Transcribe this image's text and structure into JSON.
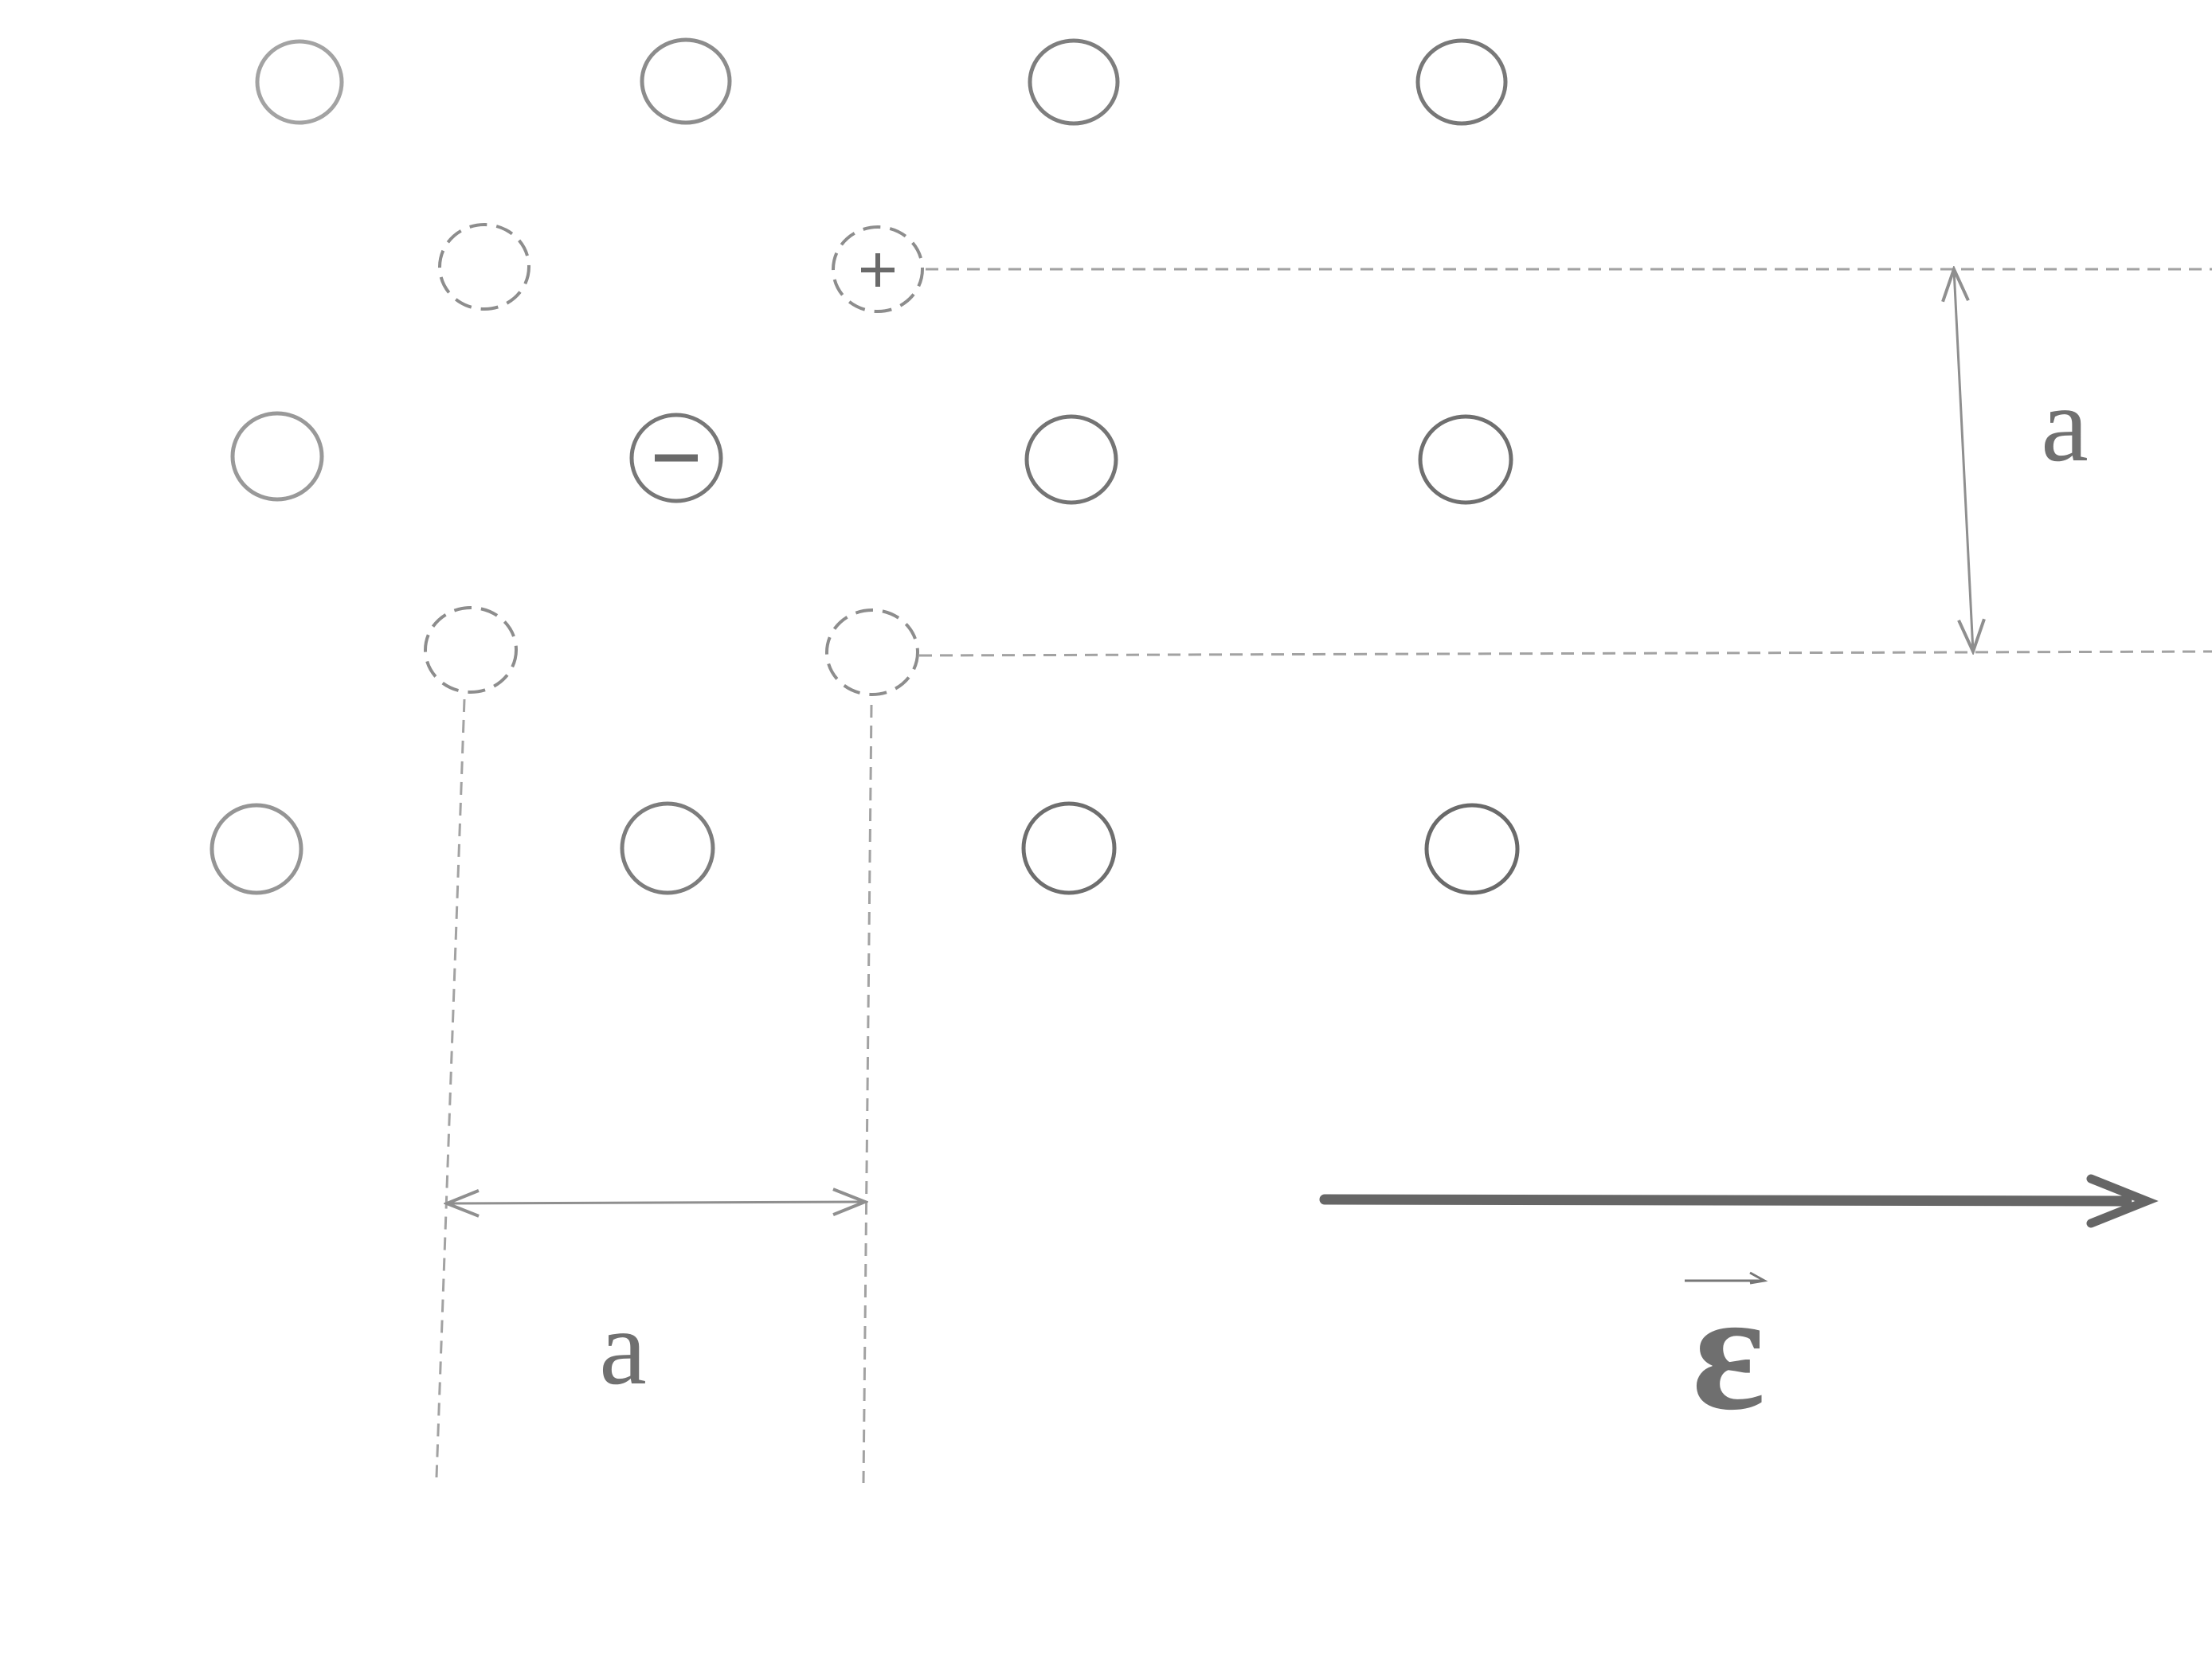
{
  "diagram": {
    "lattice": {
      "rows": 3,
      "columns": 4,
      "vacancies": 4,
      "colors": {
        "atom_stroke_light": "#9a9a9a",
        "atom_stroke_dark": "#6e6e6e",
        "vacancy_stroke": "#8a8a8a",
        "guide_line": "#9c9c9c"
      }
    },
    "charges": {
      "positive_sign": "+",
      "negative_sign": "−"
    },
    "dimensions": {
      "vertical_label": "a",
      "horizontal_label": "a"
    },
    "field": {
      "symbol": "ε",
      "vector_arrow": "→",
      "direction": "right",
      "arrow_color": "#666666"
    }
  }
}
